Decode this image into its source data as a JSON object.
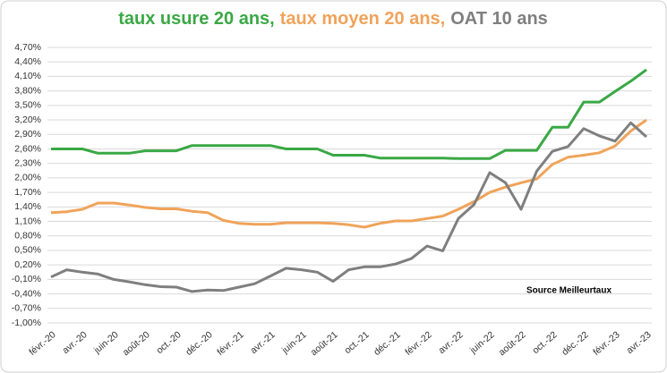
{
  "chart_data": {
    "type": "line",
    "title_separator": ",",
    "annotation": "Source Meilleurtaux",
    "categories": [
      "févr.-20",
      null,
      "avr.-20",
      null,
      "juin-20",
      null,
      "août-20",
      null,
      "oct.-20",
      null,
      "déc.-20",
      null,
      "févr.-21",
      null,
      "avr.-21",
      null,
      "juin-21",
      null,
      "août-21",
      null,
      "oct.-21",
      null,
      "déc.-21",
      null,
      "févr.-22",
      null,
      "avr.-22",
      null,
      "juin-22",
      null,
      "août-22",
      null,
      "oct.-22",
      null,
      "déc.-22",
      null,
      "févr.-23",
      null,
      "avr.-23"
    ],
    "series": [
      {
        "name": "taux usure 20 ans",
        "color": "#3aa845",
        "values": [
          2.6,
          2.6,
          2.6,
          2.51,
          2.51,
          2.51,
          2.56,
          2.56,
          2.56,
          2.67,
          2.67,
          2.67,
          2.67,
          2.67,
          2.67,
          2.6,
          2.6,
          2.6,
          2.47,
          2.47,
          2.47,
          2.41,
          2.41,
          2.41,
          2.41,
          2.41,
          2.4,
          2.4,
          2.4,
          2.57,
          2.57,
          2.57,
          3.05,
          3.05,
          3.57,
          3.57,
          3.79,
          4.0,
          4.24
        ]
      },
      {
        "name": "taux moyen 20 ans",
        "color": "#f0a35a",
        "values": [
          1.28,
          1.3,
          1.35,
          1.48,
          1.48,
          1.44,
          1.39,
          1.36,
          1.36,
          1.31,
          1.28,
          1.12,
          1.06,
          1.04,
          1.04,
          1.07,
          1.07,
          1.07,
          1.06,
          1.03,
          0.98,
          1.06,
          1.11,
          1.11,
          1.16,
          1.21,
          1.35,
          1.51,
          1.7,
          1.81,
          1.9,
          1.98,
          2.28,
          2.43,
          2.47,
          2.52,
          2.66,
          2.97,
          3.2
        ]
      },
      {
        "name": "OAT 10 ans",
        "color": "#7f7f7f",
        "values": [
          -0.05,
          0.1,
          0.05,
          0.01,
          -0.1,
          -0.15,
          -0.21,
          -0.25,
          -0.26,
          -0.35,
          -0.32,
          -0.33,
          -0.26,
          -0.19,
          -0.03,
          0.13,
          0.1,
          0.05,
          -0.14,
          0.1,
          0.16,
          0.16,
          0.22,
          0.33,
          0.59,
          0.49,
          1.16,
          1.45,
          2.11,
          1.9,
          1.35,
          2.14,
          2.55,
          2.65,
          3.02,
          2.87,
          2.76,
          3.14,
          2.85
        ]
      }
    ],
    "ylim": [
      -1.0,
      4.7
    ],
    "yticks": [
      {
        "value": -1.0,
        "label": "-1,00%"
      },
      {
        "value": -0.7,
        "label": "-0,70%"
      },
      {
        "value": -0.4,
        "label": "-0,40%"
      },
      {
        "value": -0.1,
        "label": "-0,10%"
      },
      {
        "value": 0.2,
        "label": "0,20%"
      },
      {
        "value": 0.5,
        "label": "0,50%"
      },
      {
        "value": 0.8,
        "label": "0,80%"
      },
      {
        "value": 1.1,
        "label": "1,10%"
      },
      {
        "value": 1.4,
        "label": "1,40%"
      },
      {
        "value": 1.7,
        "label": "1,70%"
      },
      {
        "value": 2.0,
        "label": "2,00%"
      },
      {
        "value": 2.3,
        "label": "2,30%"
      },
      {
        "value": 2.6,
        "label": "2,60%"
      },
      {
        "value": 2.9,
        "label": "2,90%"
      },
      {
        "value": 3.2,
        "label": "3,20%"
      },
      {
        "value": 3.5,
        "label": "3,50%"
      },
      {
        "value": 3.8,
        "label": "3,80%"
      },
      {
        "value": 4.1,
        "label": "4,10%"
      },
      {
        "value": 4.4,
        "label": "4,40%"
      },
      {
        "value": 4.7,
        "label": "4,70%"
      }
    ],
    "grid": true
  }
}
